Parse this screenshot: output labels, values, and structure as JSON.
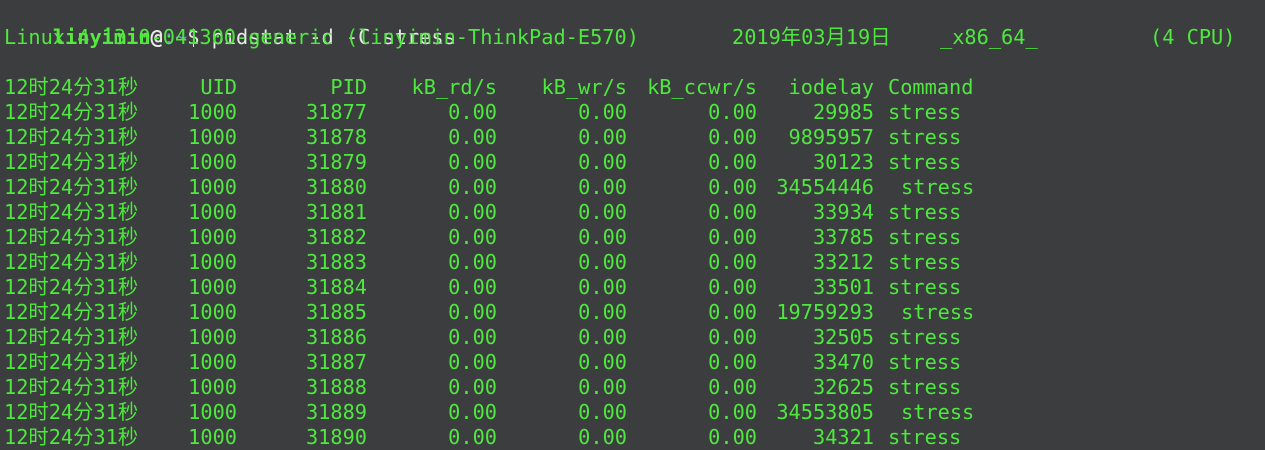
{
  "window": {
    "prompt_user": "linyimin",
    "prompt_at": "@",
    "prompt_path": ":~",
    "prompt_symbol": "$",
    "command": "pidstat -d -C stress"
  },
  "sysinfo": {
    "kernel": "Linux 4.13.0-041300-generic (linyimin-ThinkPad-E570)",
    "date": "2019年03月19日",
    "arch": "_x86_64_",
    "cpus": "(4 CPU)"
  },
  "table": {
    "headers": [
      "12时24分31秒",
      "UID",
      "PID",
      "kB_rd/s",
      "kB_wr/s",
      "kB_ccwr/s",
      "iodelay",
      "Command"
    ],
    "rows": [
      [
        "12时24分31秒",
        "1000",
        "31877",
        "0.00",
        "0.00",
        "0.00",
        "29985",
        "stress"
      ],
      [
        "12时24分31秒",
        "1000",
        "31878",
        "0.00",
        "0.00",
        "0.00",
        "9895957",
        "stress"
      ],
      [
        "12时24分31秒",
        "1000",
        "31879",
        "0.00",
        "0.00",
        "0.00",
        "30123",
        "stress"
      ],
      [
        "12时24分31秒",
        "1000",
        "31880",
        "0.00",
        "0.00",
        "0.00",
        "34554446",
        "stress"
      ],
      [
        "12时24分31秒",
        "1000",
        "31881",
        "0.00",
        "0.00",
        "0.00",
        "33934",
        "stress"
      ],
      [
        "12时24分31秒",
        "1000",
        "31882",
        "0.00",
        "0.00",
        "0.00",
        "33785",
        "stress"
      ],
      [
        "12时24分31秒",
        "1000",
        "31883",
        "0.00",
        "0.00",
        "0.00",
        "33212",
        "stress"
      ],
      [
        "12时24分31秒",
        "1000",
        "31884",
        "0.00",
        "0.00",
        "0.00",
        "33501",
        "stress"
      ],
      [
        "12时24分31秒",
        "1000",
        "31885",
        "0.00",
        "0.00",
        "0.00",
        "19759293",
        "stress"
      ],
      [
        "12时24分31秒",
        "1000",
        "31886",
        "0.00",
        "0.00",
        "0.00",
        "32505",
        "stress"
      ],
      [
        "12时24分31秒",
        "1000",
        "31887",
        "0.00",
        "0.00",
        "0.00",
        "33470",
        "stress"
      ],
      [
        "12时24分31秒",
        "1000",
        "31888",
        "0.00",
        "0.00",
        "0.00",
        "32625",
        "stress"
      ],
      [
        "12时24分31秒",
        "1000",
        "31889",
        "0.00",
        "0.00",
        "0.00",
        "34553805",
        "stress"
      ],
      [
        "12时24分31秒",
        "1000",
        "31890",
        "0.00",
        "0.00",
        "0.00",
        "34321",
        "stress"
      ]
    ]
  },
  "colors": {
    "background": "#3b3d3f",
    "output_green": "#4ee83e",
    "prompt_green": "#59e83f",
    "path_blue": "#6b8fd6",
    "command_white": "#e8e8e8"
  }
}
